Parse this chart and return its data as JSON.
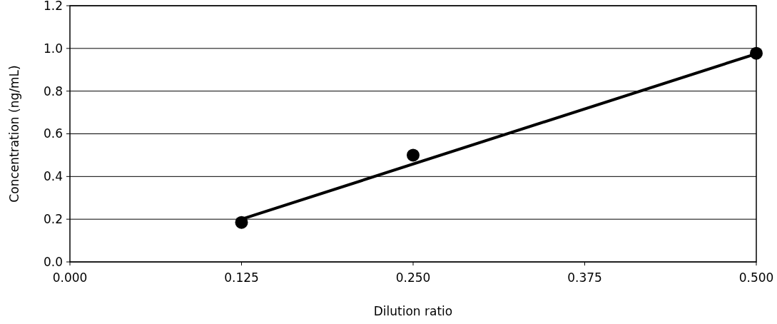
{
  "chart_data": {
    "type": "scatter",
    "xlabel": "Dilution ratio",
    "ylabel": "Concentration (ng/mL)",
    "x": [
      0.125,
      0.25,
      0.5
    ],
    "series": [
      {
        "color": "#000000",
        "values": [
          0.185,
          0.5,
          0.977
        ],
        "marker": "circle"
      },
      {
        "type": "line",
        "color": "#000000",
        "x": [
          0.125,
          0.5
        ],
        "values": [
          0.2,
          0.975
        ],
        "marker": "none",
        "line_style": "solid"
      }
    ],
    "xlim": [
      0,
      0.5
    ],
    "xticks": [
      {
        "value": 0,
        "label": "0.000"
      },
      0.125,
      {
        "value": 0.25,
        "label": "0.250"
      },
      0.375,
      {
        "value": 0.5,
        "label": "0.500"
      }
    ],
    "ylim": [
      0,
      1.2
    ],
    "yticks": [
      {
        "value": 0,
        "label": "0.0"
      },
      0.2,
      0.4,
      0.6,
      0.8,
      {
        "value": 1,
        "label": "1.0"
      },
      1.2
    ],
    "grid": "y"
  }
}
